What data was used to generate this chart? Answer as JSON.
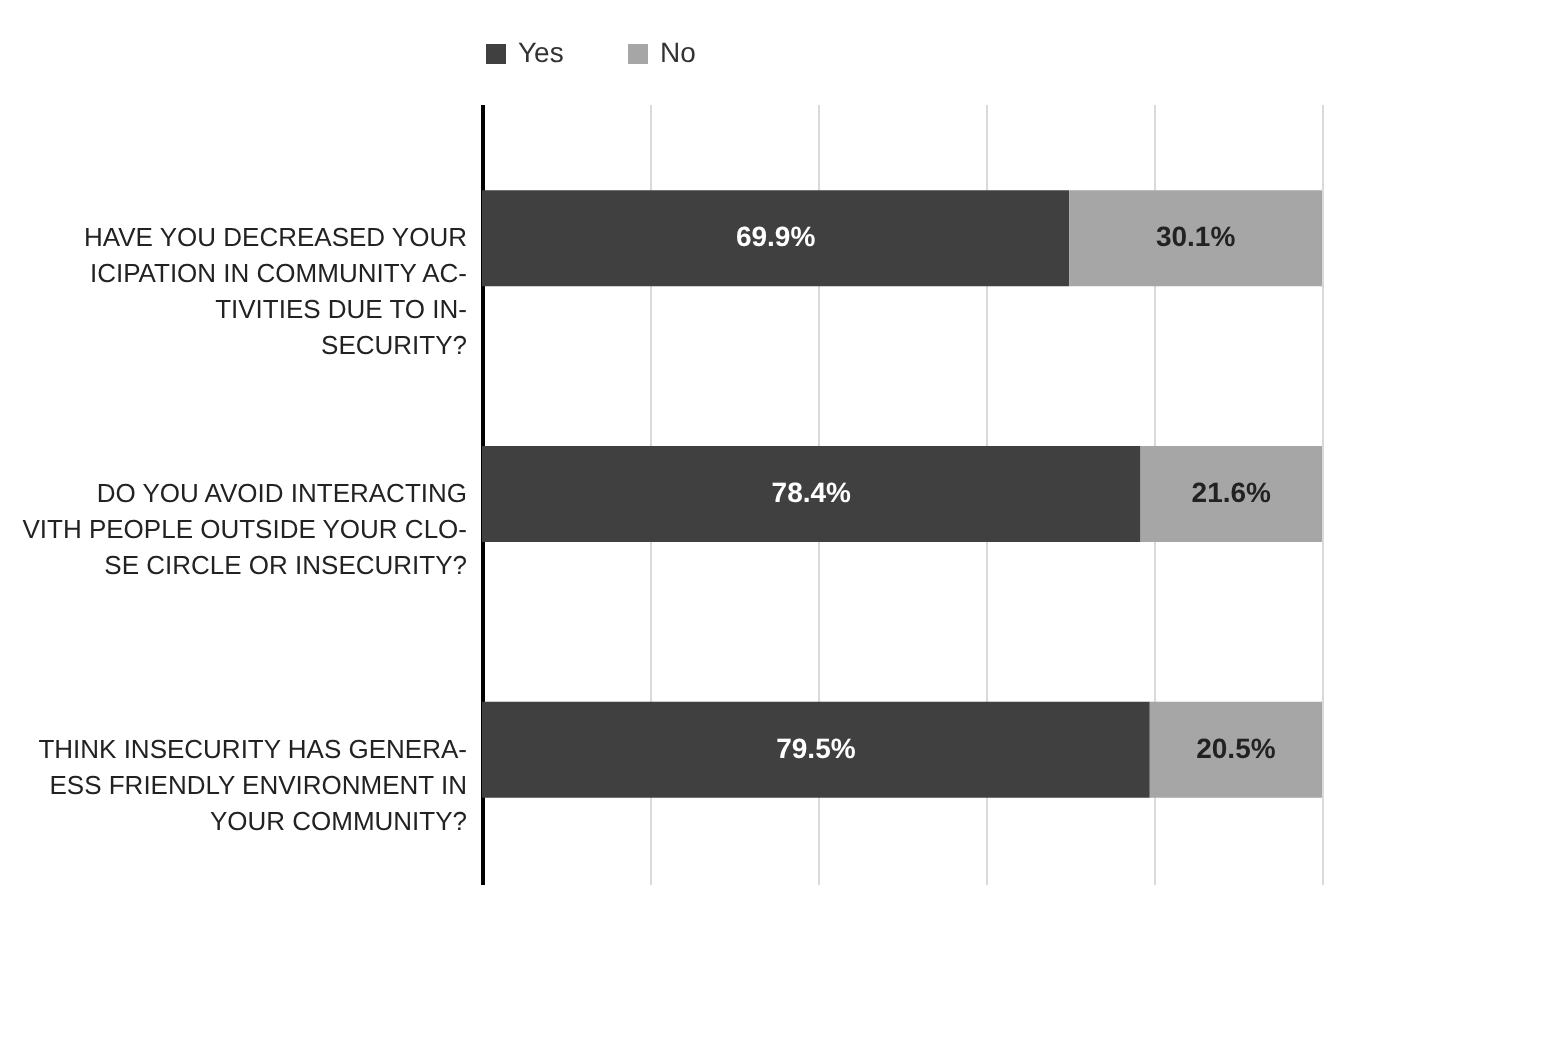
{
  "chart_data": {
    "type": "bar",
    "orientation": "horizontal",
    "stacked": true,
    "categories": [
      "HAVE YOU DECREASED YOUR\nICIPATION IN COMMUNITY AC-\nTIVITIES DUE TO IN-\nSECURITY?",
      "DO YOU AVOID INTERACTING\nVITH PEOPLE OUTSIDE YOUR CLO-\nSE CIRCLE OR INSECURITY?",
      "THINK INSECURITY HAS GENERA-\nESS FRIENDLY ENVIRONMENT IN\nYOUR COMMUNITY?"
    ],
    "series": [
      {
        "name": "Yes",
        "color": "#404040",
        "values": [
          69.9,
          78.4,
          79.5
        ],
        "value_labels": [
          "69.9%",
          "78.4%",
          "79.5%"
        ]
      },
      {
        "name": "No",
        "color": "#a6a6a6",
        "values": [
          30.1,
          21.6,
          20.5
        ],
        "value_labels": [
          "30.1%",
          "21.6%",
          "20.5%"
        ]
      }
    ],
    "xlim": [
      0,
      100
    ],
    "xticks": [
      {
        "value": 0,
        "label": null
      },
      {
        "value": 20,
        "label": null
      },
      {
        "value": 40,
        "label": null
      },
      {
        "value": 60,
        "label": null
      },
      {
        "value": 80,
        "label": null
      },
      {
        "value": 100,
        "label": null
      }
    ],
    "grid": "x",
    "legend": "top",
    "tick_labels": "y"
  }
}
